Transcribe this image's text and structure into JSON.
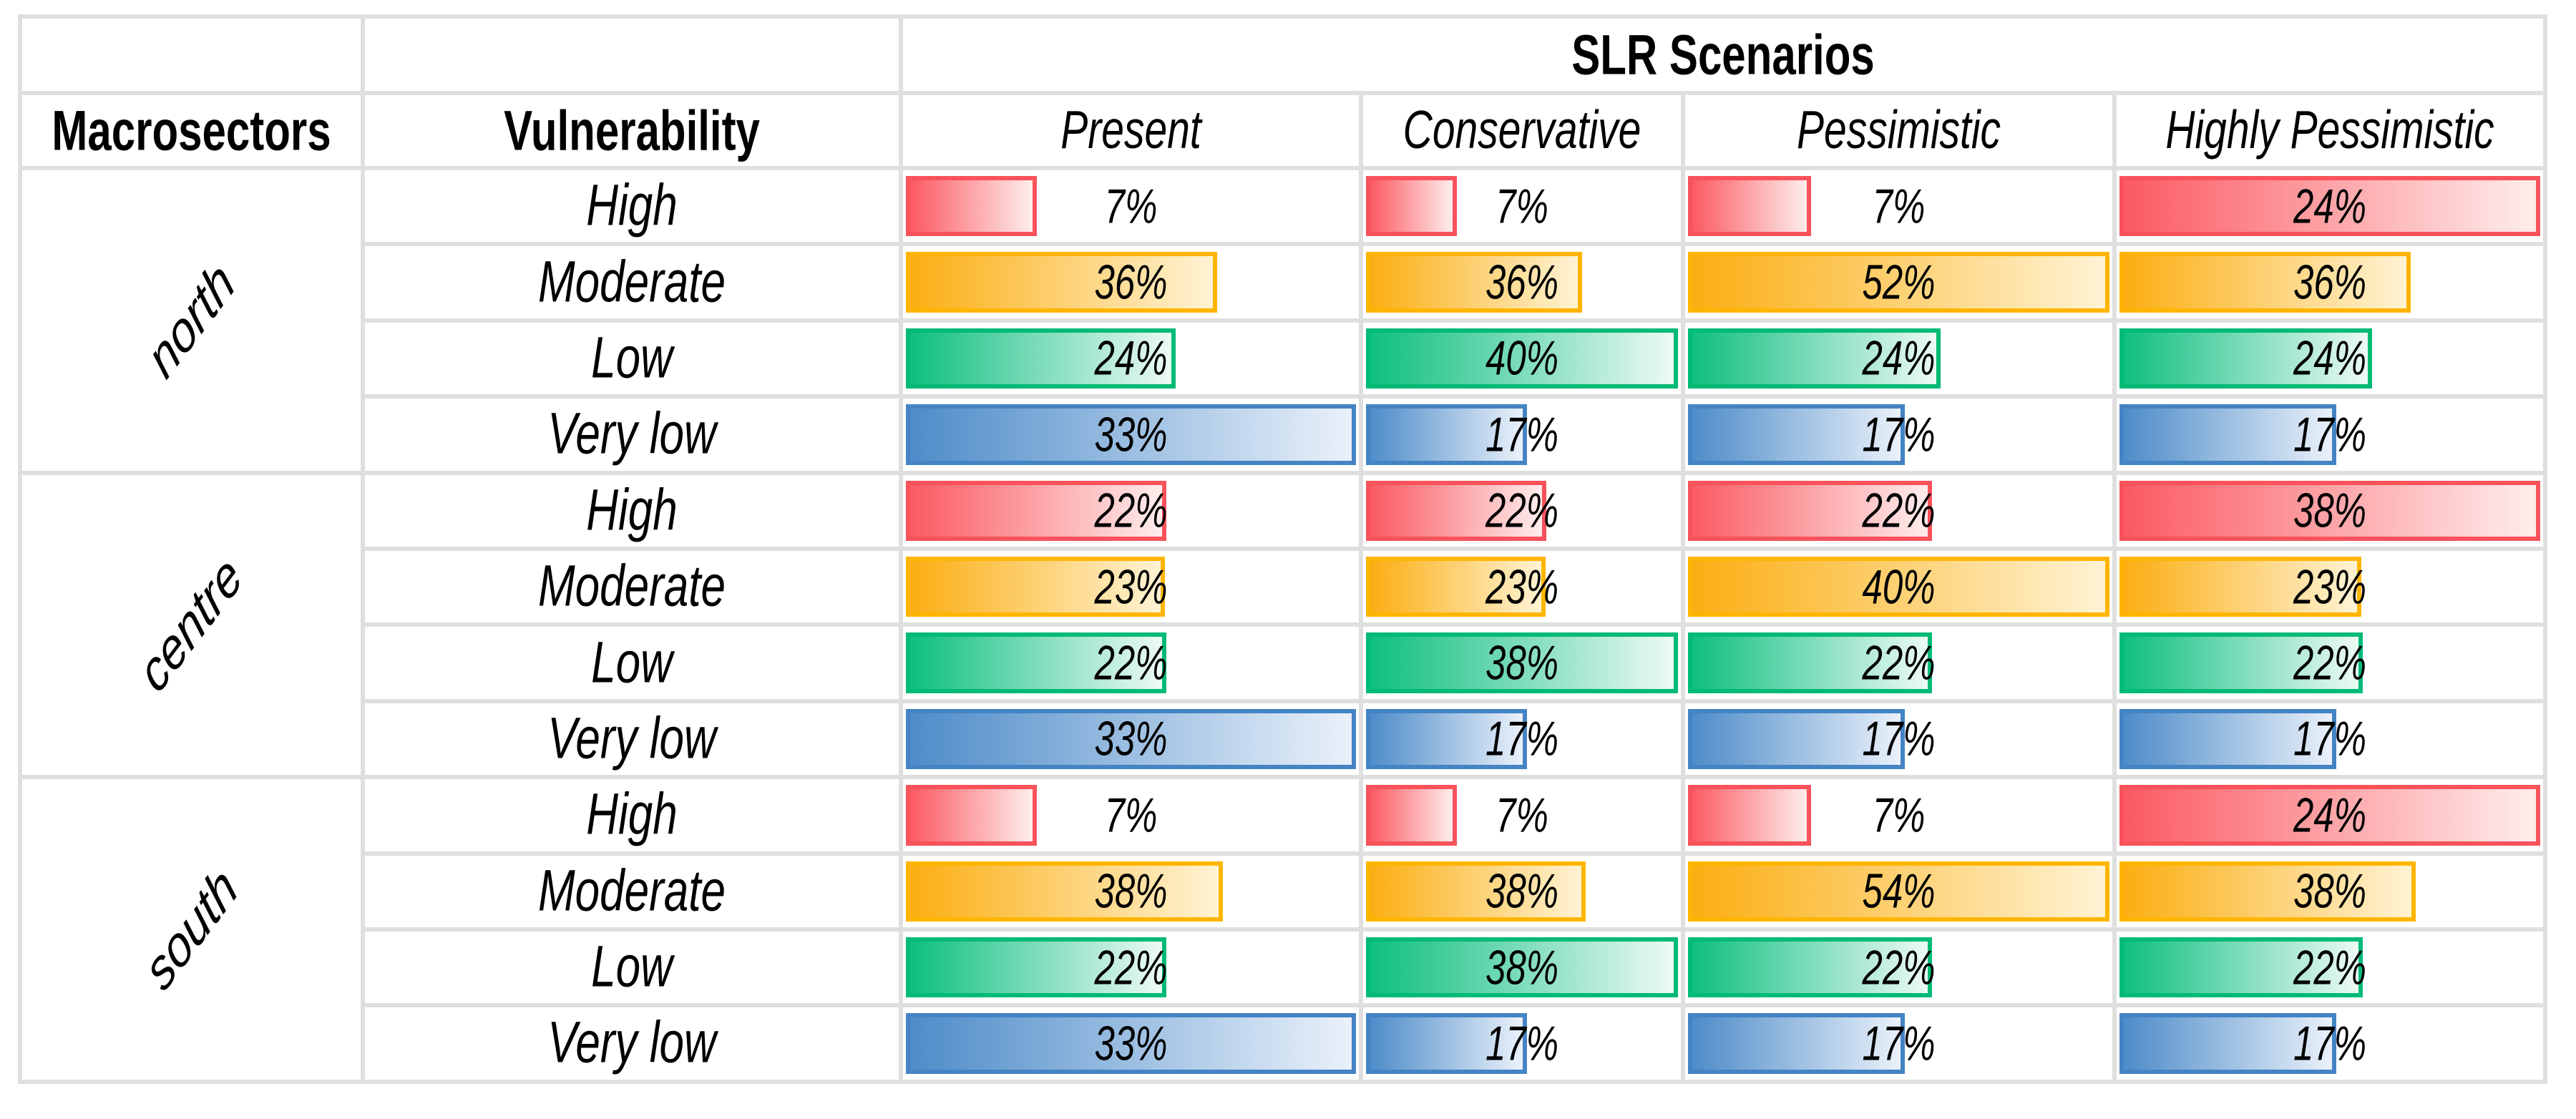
{
  "chart_data": {
    "type": "table",
    "title": "SLR Scenarios",
    "header": {
      "macrosectors": "Macrosectors",
      "vulnerability": "Vulnerability"
    },
    "scenarios": [
      "Present",
      "Conservative",
      "Pessimistic",
      "Highly Pessimistic"
    ],
    "vulnerability_levels": [
      "High",
      "Moderate",
      "Low",
      "Very low"
    ],
    "unit": "%",
    "bar_scaling": "per-row: bar width = value / max(row values)",
    "groups": [
      {
        "name": "north",
        "rows": [
          {
            "vulnerability": "High",
            "values": [
              7,
              7,
              7,
              24
            ]
          },
          {
            "vulnerability": "Moderate",
            "values": [
              36,
              36,
              52,
              36
            ]
          },
          {
            "vulnerability": "Low",
            "values": [
              24,
              40,
              24,
              24
            ]
          },
          {
            "vulnerability": "Very low",
            "values": [
              33,
              17,
              17,
              17
            ]
          }
        ]
      },
      {
        "name": "centre",
        "rows": [
          {
            "vulnerability": "High",
            "values": [
              22,
              22,
              22,
              38
            ]
          },
          {
            "vulnerability": "Moderate",
            "values": [
              23,
              23,
              40,
              23
            ]
          },
          {
            "vulnerability": "Low",
            "values": [
              22,
              38,
              22,
              22
            ]
          },
          {
            "vulnerability": "Very low",
            "values": [
              33,
              17,
              17,
              17
            ]
          }
        ]
      },
      {
        "name": "south",
        "rows": [
          {
            "vulnerability": "High",
            "values": [
              7,
              7,
              7,
              24
            ]
          },
          {
            "vulnerability": "Moderate",
            "values": [
              38,
              38,
              54,
              38
            ]
          },
          {
            "vulnerability": "Low",
            "values": [
              22,
              38,
              22,
              22
            ]
          },
          {
            "vulnerability": "Very low",
            "values": [
              33,
              17,
              17,
              17
            ]
          }
        ]
      }
    ]
  },
  "colors": {
    "background": "#FFFFFF",
    "grid_line": "#DFDFDF",
    "text": "#000000",
    "bars": {
      "High": {
        "border": "#F8525B",
        "fill_start": "#FB5A62",
        "fill_end": "#FEEDEC"
      },
      "Moderate": {
        "border": "#FEB502",
        "fill_start": "#FBAE12",
        "fill_end": "#FFF3D4"
      },
      "Low": {
        "border": "#00BA76",
        "fill_start": "#0EBF80",
        "fill_end": "#EDFAF4"
      },
      "Very low": {
        "border": "#4484C4",
        "fill_start": "#4E8CC9",
        "fill_end": "#EAF1FA"
      }
    }
  }
}
